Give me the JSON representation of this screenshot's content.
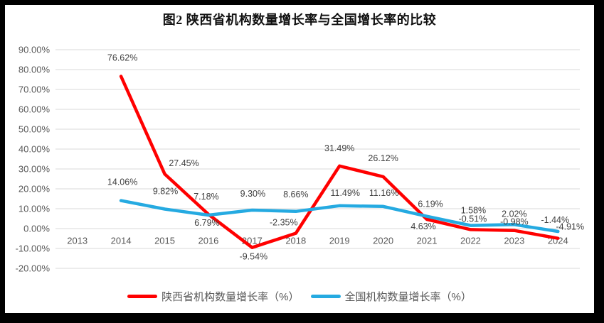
{
  "chart_data": {
    "type": "line",
    "title": "图2 陕西省机构数量增长率与全国增长率的比较",
    "categories": [
      "2013",
      "2014",
      "2015",
      "2016",
      "2017",
      "2018",
      "2019",
      "2020",
      "2021",
      "2022",
      "2023",
      "2024"
    ],
    "series": [
      {
        "name": "陕西省机构数量增长率（%）",
        "color": "#FF0000",
        "values": [
          null,
          76.62,
          27.45,
          7.18,
          -9.54,
          -2.35,
          31.49,
          26.12,
          4.63,
          -0.51,
          -0.98,
          -4.91
        ],
        "label_offsets": [
          [
            0,
            0
          ],
          [
            2,
            -26
          ],
          [
            27,
            -15
          ],
          [
            -3,
            -25
          ],
          [
            2,
            13
          ],
          [
            -17,
            -15
          ],
          [
            0,
            -25
          ],
          [
            0,
            -26
          ],
          [
            -5,
            10
          ],
          [
            3,
            -15
          ],
          [
            0,
            -12
          ],
          [
            17,
            -16
          ]
        ]
      },
      {
        "name": "全国机构数量增长率（%）",
        "color": "#25AAE1",
        "values": [
          null,
          14.06,
          9.82,
          6.79,
          9.3,
          8.66,
          11.49,
          11.16,
          6.19,
          1.58,
          2.02,
          -1.44
        ],
        "label_offsets": [
          [
            0,
            0
          ],
          [
            2,
            -26
          ],
          [
            1,
            -25
          ],
          [
            -2,
            11
          ],
          [
            1,
            -23
          ],
          [
            0,
            -24
          ],
          [
            8,
            -18
          ],
          [
            1,
            -19
          ],
          [
            5,
            -17
          ],
          [
            4,
            -21
          ],
          [
            0,
            -15
          ],
          [
            -4,
            -16
          ]
        ]
      }
    ],
    "ylim": [
      -20,
      90
    ],
    "ytick_step": 10,
    "ytick_labels": [
      "90.00%",
      "80.00%",
      "70.00%",
      "60.00%",
      "50.00%",
      "40.00%",
      "30.00%",
      "20.00%",
      "10.00%",
      "0.00%",
      "-10.00%",
      "-20.00%"
    ],
    "value_label_decimals": 2,
    "value_label_suffix": "%",
    "grid": true,
    "legend_position": "bottom",
    "colors": {
      "gridline": "#D9D9D9",
      "axis_text": "#595959",
      "data_label_text": "#404040",
      "frame": "#000000",
      "background": "#FFFFFF"
    }
  }
}
